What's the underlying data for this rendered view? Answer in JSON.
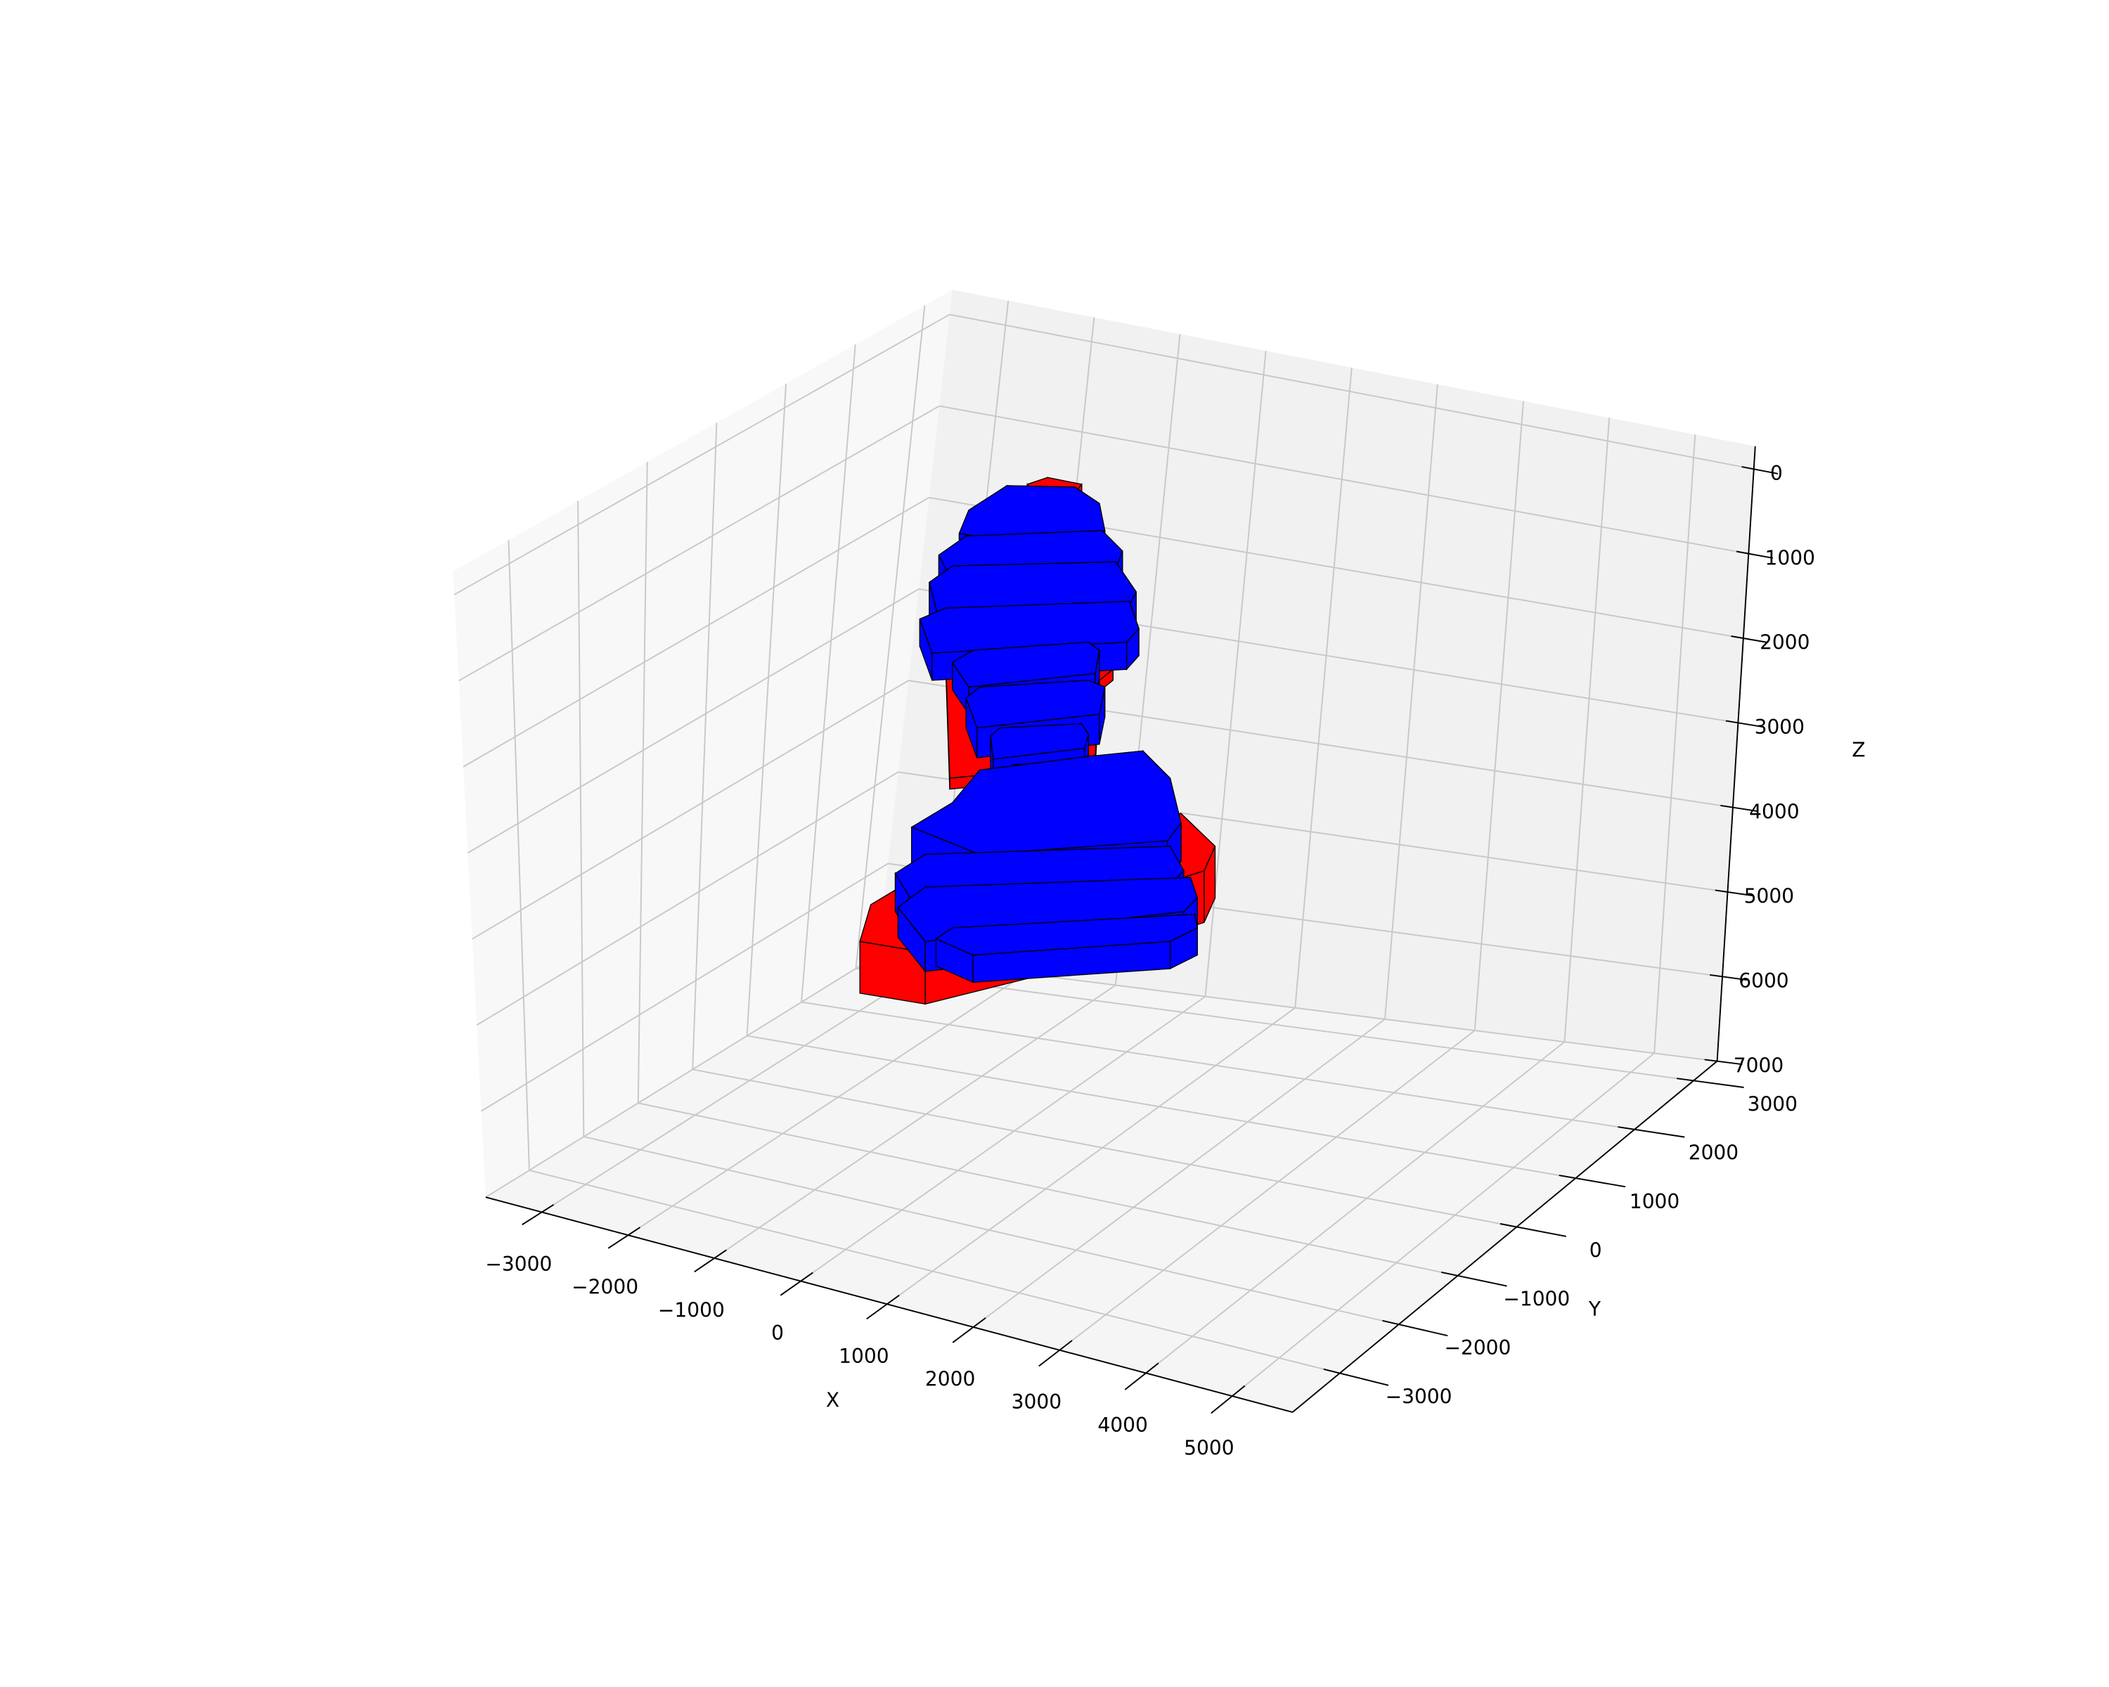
{
  "chart_data": {
    "type": "voxel3d",
    "xlabel": "X",
    "ylabel": "Y",
    "zlabel": "Z",
    "xlim": [
      -3650,
      5700
    ],
    "ylim": [
      -3800,
      3400
    ],
    "zlim": [
      7000,
      -270
    ],
    "xticks": [
      {
        "value": -3000,
        "label": "−3000"
      },
      {
        "value": -2000,
        "label": "−2000"
      },
      {
        "value": -1000,
        "label": "−1000"
      },
      0,
      1000,
      2000,
      3000,
      4000,
      5000
    ],
    "yticks": [
      {
        "value": -3000,
        "label": "−3000"
      },
      {
        "value": -2000,
        "label": "−2000"
      },
      {
        "value": -1000,
        "label": "−1000"
      },
      0,
      1000,
      2000,
      3000
    ],
    "zticks": [
      0,
      1000,
      2000,
      3000,
      4000,
      5000,
      6000,
      7000
    ],
    "grid": true,
    "colors": [
      "#ff0000",
      "#0000ff"
    ]
  }
}
